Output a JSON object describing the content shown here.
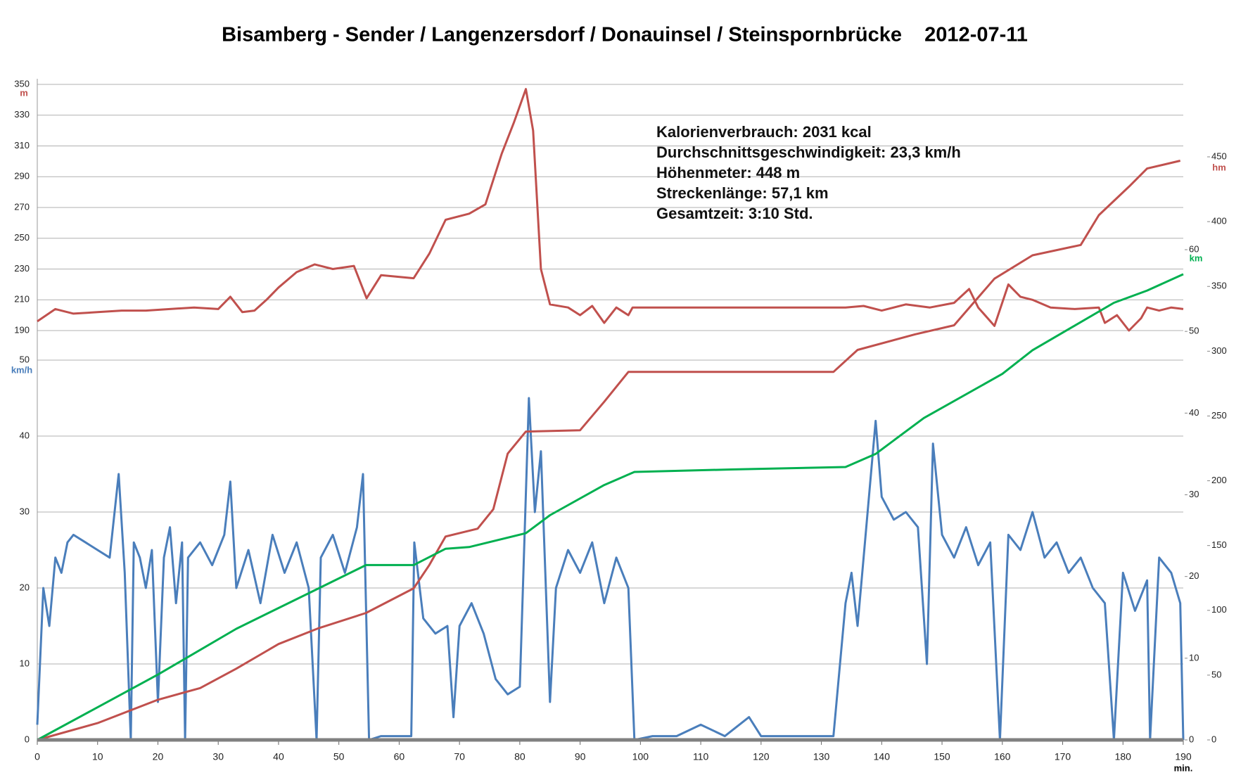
{
  "chart_data": {
    "type": "line",
    "title": "Bisamberg - Sender / Langenzersdorf / Donauinsel / Steinspornbrücke    2012-07-11",
    "annotations": [
      "Kalorienverbrauch: 2031 kcal",
      "Durchschnittsgeschwindigkeit: 23,3 km/h",
      "Höhenmeter: 448 m",
      "Streckenlänge: 57,1 km",
      "Gesamtzeit: 3:10 Std."
    ],
    "xlabel": "min.",
    "xlim": [
      0,
      190
    ],
    "xticks": [
      0,
      10,
      20,
      30,
      40,
      50,
      60,
      70,
      80,
      90,
      100,
      110,
      120,
      130,
      140,
      150,
      160,
      170,
      180,
      190
    ],
    "y_axes": [
      {
        "label": "km/h",
        "color": "#4a7ebb",
        "side": "left",
        "grid": true,
        "lim": [
          0,
          50
        ],
        "ticks": [
          0,
          10,
          20,
          30,
          40,
          50
        ]
      },
      {
        "label": "m",
        "color": "#c0504d",
        "side": "left",
        "grid": true,
        "lim": [
          190,
          350
        ],
        "ticks": [
          190,
          210,
          230,
          250,
          270,
          290,
          310,
          330,
          350
        ]
      },
      {
        "label": "km",
        "color": "#00b050",
        "side": "right",
        "grid": false,
        "lim": [
          0,
          60
        ],
        "ticks": [
          0,
          10,
          20,
          30,
          40,
          50,
          60
        ]
      },
      {
        "label": "hm",
        "color": "#c0504d",
        "side": "right",
        "grid": false,
        "lim": [
          0,
          450
        ],
        "ticks": [
          0,
          50,
          100,
          150,
          200,
          250,
          300,
          350,
          400,
          450
        ]
      }
    ],
    "series": [
      {
        "color": "#4a7ebb",
        "axis": 0,
        "x": [
          0,
          1,
          2,
          3,
          4,
          5,
          6,
          8,
          10,
          12,
          13.5,
          14.5,
          15.5,
          16,
          17,
          18,
          19,
          20,
          21,
          22,
          23,
          24,
          24.5,
          25,
          27,
          29,
          31,
          32,
          33,
          35,
          37,
          39,
          41,
          43,
          45,
          46.3,
          47,
          49,
          51,
          53,
          54,
          55,
          57,
          60,
          62,
          62.5,
          64,
          66,
          68,
          69,
          70,
          72,
          74,
          76,
          78,
          80,
          81.5,
          82.5,
          83.5,
          85,
          86,
          88,
          90,
          92,
          94,
          96,
          98,
          99,
          102,
          106,
          110,
          114,
          118,
          120,
          124,
          128,
          132,
          134,
          135,
          136,
          137,
          139,
          140,
          142,
          144,
          146,
          147.5,
          148.5,
          150,
          152,
          154,
          156,
          158,
          159.6,
          161,
          163,
          165,
          167,
          169,
          171,
          173,
          175,
          177,
          178.5,
          180,
          182,
          184,
          184.5,
          186,
          188,
          189.5,
          190
        ],
        "values": [
          2,
          20,
          15,
          24,
          22,
          26,
          27,
          26,
          25,
          24,
          35,
          22,
          0,
          26,
          24,
          20,
          25,
          5,
          24,
          28,
          18,
          26,
          0,
          24,
          26,
          23,
          27,
          34,
          20,
          25,
          18,
          27,
          22,
          26,
          20,
          0,
          24,
          27,
          22,
          28,
          35,
          0,
          0.5,
          0.5,
          0.5,
          26,
          16,
          14,
          15,
          3,
          15,
          18,
          14,
          8,
          6,
          7,
          45,
          30,
          38,
          5,
          20,
          25,
          22,
          26,
          18,
          24,
          20,
          0,
          0.5,
          0.5,
          2,
          0.5,
          3,
          0.5,
          0.5,
          0.5,
          0.5,
          18,
          22,
          15,
          24,
          42,
          32,
          29,
          30,
          28,
          10,
          39,
          27,
          24,
          28,
          23,
          26,
          0,
          27,
          25,
          30,
          24,
          26,
          22,
          24,
          20,
          18,
          0,
          22,
          17,
          21,
          0,
          24,
          22,
          18,
          0
        ]
      },
      {
        "color": "#c0504d",
        "axis": 1,
        "x": [
          0,
          3,
          6,
          10,
          14,
          18,
          22,
          26,
          30,
          32,
          34,
          36,
          38,
          40,
          43,
          46,
          49,
          52.5,
          54.6,
          57,
          62.4,
          65,
          67.7,
          71.6,
          74.3,
          77,
          79,
          81,
          82.2,
          83.5,
          85,
          88,
          90,
          92,
          94,
          96,
          98,
          98.7,
          134,
          137,
          140,
          144,
          148,
          152,
          154.5,
          156,
          158.7,
          161,
          163,
          165,
          168,
          172,
          176,
          177,
          179,
          181,
          183,
          184,
          186,
          188,
          190
        ],
        "values": [
          196,
          204,
          201,
          202,
          203,
          203,
          204,
          205,
          204,
          212,
          202,
          203,
          210,
          218,
          228,
          233,
          230,
          232,
          211,
          226,
          224,
          240,
          262,
          266,
          272,
          305,
          325,
          347,
          320,
          230,
          207,
          205,
          200,
          206,
          195,
          205,
          200,
          205,
          205,
          206,
          203,
          207,
          205,
          208,
          217,
          205,
          193,
          220,
          212,
          210,
          205,
          204,
          205,
          195,
          200,
          190,
          198,
          205,
          203,
          205,
          204
        ]
      },
      {
        "color": "#c0504d",
        "axis": 3,
        "x": [
          0,
          10,
          20,
          27,
          33,
          40,
          46.5,
          54.5,
          62.4,
          65,
          67.7,
          73,
          75.6,
          78,
          81,
          90,
          94,
          98,
          132,
          136,
          145.5,
          152,
          158.7,
          165,
          173,
          176,
          181,
          184,
          189.5
        ],
        "values": [
          0,
          13,
          31,
          40,
          55,
          74,
          86,
          98,
          117,
          135,
          157,
          163,
          178,
          221,
          238,
          239,
          261,
          284,
          284,
          301,
          313,
          320,
          356,
          374,
          382,
          405,
          427,
          441,
          447
        ]
      },
      {
        "color": "#00b050",
        "axis": 2,
        "x": [
          0,
          20,
          33,
          46.5,
          54.5,
          62.4,
          67.7,
          71.6,
          81,
          85,
          94,
          99,
          115,
          134,
          139,
          147,
          160,
          165,
          178.5,
          184,
          190
        ],
        "values": [
          0,
          8,
          13.6,
          18.5,
          21.4,
          21.4,
          23.4,
          23.6,
          25.3,
          27.5,
          31.2,
          32.8,
          33.1,
          33.4,
          35,
          39.4,
          44.8,
          47.7,
          53.5,
          55,
          57
        ]
      }
    ]
  }
}
